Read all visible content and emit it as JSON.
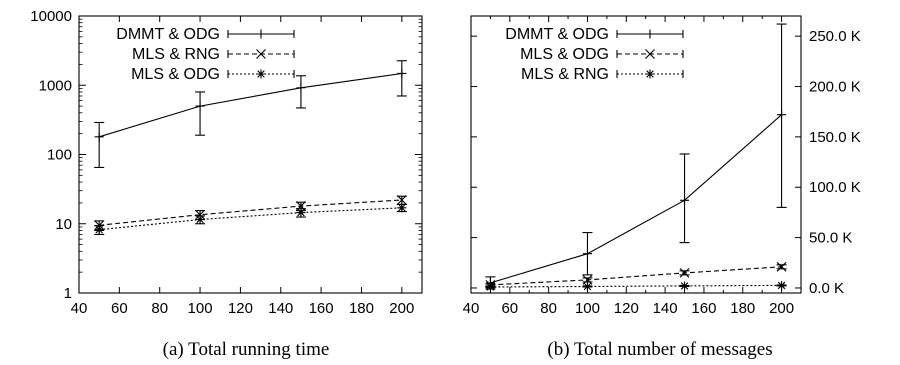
{
  "figures": [
    {
      "caption": "(a)  Total running time"
    },
    {
      "caption": "(b)  Total number of messages"
    }
  ],
  "chart_data": [
    {
      "type": "line",
      "title": "",
      "xlabel": "",
      "ylabel": "",
      "yscale": "log",
      "x": [
        50,
        100,
        150,
        200
      ],
      "xlim": [
        40,
        210
      ],
      "xticks": [
        "40",
        "60",
        "80",
        "100",
        "120",
        "140",
        "160",
        "180",
        "200"
      ],
      "ylim": [
        1,
        10000
      ],
      "yticks": [
        "1",
        "10",
        "100",
        "1000",
        "10000"
      ],
      "yaxis_side": "left",
      "legend_position": "top-left",
      "grid": false,
      "series": [
        {
          "name": "DMMT & ODG",
          "marker": "plus",
          "dash": "solid",
          "values": [
            180,
            500,
            920,
            1480
          ],
          "err_low": [
            65,
            190,
            470,
            700
          ],
          "err_high": [
            290,
            800,
            1370,
            2260
          ]
        },
        {
          "name": "MLS & RNG",
          "marker": "cross",
          "dash": "dashed",
          "values": [
            9.5,
            13.5,
            18,
            22
          ],
          "err_low": [
            8,
            11.5,
            15.5,
            19
          ],
          "err_high": [
            11,
            15.5,
            20.5,
            25
          ]
        },
        {
          "name": "MLS & ODG",
          "marker": "star",
          "dash": "dotted",
          "values": [
            8.2,
            11.5,
            14.5,
            17
          ],
          "err_low": [
            7,
            10,
            12.5,
            15
          ],
          "err_high": [
            9.4,
            13,
            16.5,
            19
          ]
        }
      ]
    },
    {
      "type": "line",
      "title": "",
      "xlabel": "",
      "ylabel": "",
      "yscale": "linear",
      "x": [
        50,
        100,
        150,
        200
      ],
      "xlim": [
        40,
        210
      ],
      "xticks": [
        "40",
        "50",
        "60",
        "70",
        "80",
        "90",
        "100",
        "110",
        "120",
        "130",
        "140",
        "150",
        "160",
        "170",
        "180",
        "190",
        "200"
      ],
      "xtick_values": [
        40,
        50,
        60,
        70,
        80,
        90,
        100,
        110,
        120,
        130,
        140,
        150,
        160,
        170,
        180,
        190,
        200
      ],
      "ylim": [
        -5000,
        270000
      ],
      "yticks": [
        "0.0 K",
        "50.0 K",
        "100.0 K",
        "150.0 K",
        "200.0 K",
        "250.0 K"
      ],
      "ytick_values": [
        0,
        50000,
        100000,
        150000,
        200000,
        250000
      ],
      "yaxis_side": "right",
      "legend_position": "top-left",
      "grid": false,
      "series": [
        {
          "name": "DMMT & ODG",
          "marker": "plus",
          "dash": "solid",
          "values": [
            5000,
            34000,
            87000,
            172000
          ],
          "err_low": [
            -1000,
            13000,
            45000,
            80000
          ],
          "err_high": [
            11000,
            55000,
            133000,
            262000
          ]
        },
        {
          "name": "MLS & ODG",
          "marker": "cross",
          "dash": "dashed",
          "values": [
            3000,
            8000,
            15000,
            21000
          ],
          "err_low": [
            2000,
            6000,
            13000,
            19000
          ],
          "err_high": [
            4000,
            10000,
            17000,
            23000
          ]
        },
        {
          "name": "MLS & RNG",
          "marker": "star",
          "dash": "dotted",
          "values": [
            1000,
            1500,
            2000,
            2500
          ],
          "err_low": [
            500,
            1000,
            1500,
            2000
          ],
          "err_high": [
            1500,
            2000,
            2500,
            3000
          ]
        }
      ]
    }
  ]
}
